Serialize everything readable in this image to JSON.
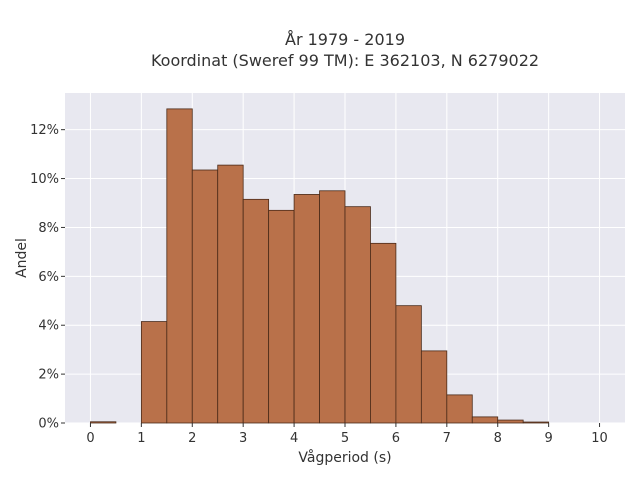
{
  "chart_data": {
    "type": "bar",
    "title_lines": [
      "År 1979 - 2019",
      "Koordinat (Sweref 99 TM): E 362103, N 6279022"
    ],
    "xlabel": "Vågperiod (s)",
    "ylabel": "Andel",
    "bin_width": 0.5,
    "bin_starts": [
      0,
      0.5,
      1,
      1.5,
      2,
      2.5,
      3,
      3.5,
      4,
      4.5,
      5,
      5.5,
      6,
      6.5,
      7,
      7.5,
      8,
      8.5,
      9,
      9.5
    ],
    "values": [
      0.05,
      0,
      4.15,
      12.85,
      10.35,
      10.55,
      9.15,
      8.7,
      9.35,
      9.5,
      8.85,
      7.35,
      4.8,
      2.95,
      1.15,
      0.25,
      0.12,
      0.04,
      0,
      0
    ],
    "xlim": [
      -0.5,
      10.5
    ],
    "ylim": [
      0,
      13.5
    ],
    "x_ticks": [
      0,
      1,
      2,
      3,
      4,
      5,
      6,
      7,
      8,
      9,
      10
    ],
    "x_tick_labels": [
      "0",
      "1",
      "2",
      "3",
      "4",
      "5",
      "6",
      "7",
      "8",
      "9",
      "10"
    ],
    "y_ticks": [
      0,
      2,
      4,
      6,
      8,
      10,
      12
    ],
    "y_tick_labels": [
      "0%",
      "2%",
      "4%",
      "6%",
      "8%",
      "10%",
      "12%"
    ],
    "grid": true,
    "colors": {
      "bar_fill": "#b9714a",
      "bar_stroke": "#4a2a18",
      "plot_bg": "#e8e8f0",
      "grid": "#ffffff"
    }
  }
}
